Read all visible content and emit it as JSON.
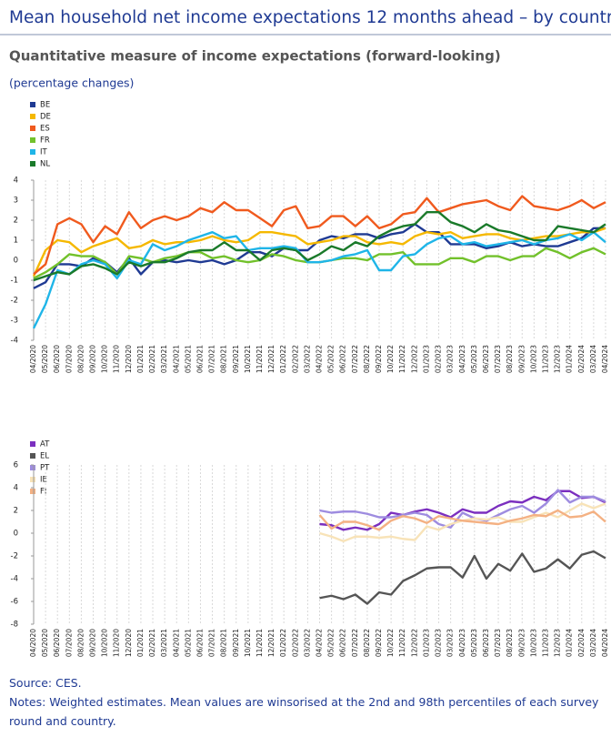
{
  "header": {
    "title": "Mean household net income expectations 12 months ahead – by country",
    "subtitle": "Quantitative measure of income expectations (forward-looking)",
    "unit": "(percentage changes)"
  },
  "chart_data": [
    {
      "type": "line",
      "categories": [
        "04/2020",
        "05/2020",
        "06/2020",
        "07/2020",
        "08/2020",
        "09/2020",
        "10/2020",
        "11/2020",
        "12/2020",
        "01/2021",
        "02/2021",
        "03/2021",
        "04/2021",
        "05/2021",
        "06/2021",
        "07/2021",
        "08/2021",
        "09/2021",
        "10/2021",
        "11/2021",
        "12/2021",
        "01/2022",
        "02/2022",
        "03/2022",
        "04/2022",
        "05/2022",
        "06/2022",
        "07/2022",
        "08/2022",
        "09/2022",
        "10/2022",
        "11/2022",
        "12/2022",
        "01/2023",
        "02/2023",
        "03/2023",
        "04/2023",
        "05/2023",
        "06/2023",
        "07/2023",
        "08/2023",
        "09/2023",
        "10/2023",
        "11/2023",
        "12/2023",
        "01/2024",
        "02/2024",
        "03/2024",
        "04/2024"
      ],
      "series": [
        {
          "name": "BE",
          "color": "#1f3a93",
          "values": [
            -1.4,
            -1.1,
            -0.2,
            -0.2,
            -0.3,
            0.1,
            -0.1,
            -0.6,
            0.1,
            -0.7,
            -0.1,
            0,
            -0.1,
            0,
            -0.1,
            0,
            -0.2,
            0,
            0.4,
            0.4,
            0.2,
            0.6,
            0.5,
            0.5,
            1.0,
            1.2,
            1.1,
            1.3,
            1.3,
            1.1,
            1.3,
            1.4,
            1.8,
            1.4,
            1.4,
            0.8,
            0.8,
            0.8,
            0.6,
            0.7,
            0.9,
            0.7,
            0.8,
            0.7,
            0.7,
            0.9,
            1.1,
            1.6,
            1.6
          ]
        },
        {
          "name": "DE",
          "color": "#f5b800",
          "values": [
            -0.8,
            0.5,
            1.0,
            0.9,
            0.4,
            0.7,
            0.9,
            1.1,
            0.6,
            0.7,
            1.0,
            0.8,
            0.9,
            0.9,
            1.0,
            1.2,
            1.0,
            0.9,
            1.0,
            1.4,
            1.4,
            1.3,
            1.2,
            0.8,
            0.9,
            1.0,
            1.2,
            1.2,
            0.9,
            0.8,
            0.9,
            0.8,
            1.2,
            1.4,
            1.3,
            1.4,
            1.1,
            1.2,
            1.3,
            1.3,
            1.1,
            1.0,
            1.1,
            1.2,
            1.2,
            1.3,
            1.4,
            1.4,
            1.6
          ]
        },
        {
          "name": "ES",
          "color": "#f05a1e",
          "values": [
            -0.7,
            -0.2,
            1.8,
            2.1,
            1.8,
            0.9,
            1.7,
            1.3,
            2.4,
            1.6,
            2.0,
            2.2,
            2.0,
            2.2,
            2.6,
            2.4,
            2.9,
            2.5,
            2.5,
            2.1,
            1.7,
            2.5,
            2.7,
            1.6,
            1.7,
            2.2,
            2.2,
            1.7,
            2.2,
            1.6,
            1.8,
            2.3,
            2.4,
            3.1,
            2.4,
            2.6,
            2.8,
            2.9,
            3.0,
            2.7,
            2.5,
            3.2,
            2.7,
            2.6,
            2.5,
            2.7,
            3.0,
            2.6,
            2.9
          ]
        },
        {
          "name": "FR",
          "color": "#72c12b",
          "values": [
            -0.9,
            -0.6,
            -0.2,
            0.3,
            0.2,
            0.2,
            -0.1,
            -0.7,
            0.2,
            0.1,
            -0.1,
            0.1,
            0.2,
            0.4,
            0.4,
            0.1,
            0.2,
            0,
            -0.1,
            0,
            0.3,
            0.2,
            0,
            -0.1,
            -0.1,
            0,
            0.1,
            0.1,
            0,
            0.3,
            0.3,
            0.4,
            -0.2,
            -0.2,
            -0.2,
            0.1,
            0.1,
            -0.1,
            0.2,
            0.2,
            0,
            0.2,
            0.2,
            0.6,
            0.4,
            0.1,
            0.4,
            0.6,
            0.3
          ]
        },
        {
          "name": "IT",
          "color": "#1fb5e8",
          "values": [
            -3.4,
            -2.2,
            -0.5,
            -0.7,
            -0.2,
            0,
            -0.2,
            -0.9,
            0,
            -0.2,
            0.8,
            0.5,
            0.7,
            1.0,
            1.2,
            1.4,
            1.1,
            1.2,
            0.5,
            0.6,
            0.6,
            0.7,
            0.6,
            -0.1,
            -0.1,
            0,
            0.2,
            0.3,
            0.5,
            -0.5,
            -0.5,
            0.2,
            0.3,
            0.8,
            1.1,
            1.2,
            0.8,
            0.9,
            0.7,
            0.8,
            0.9,
            1.0,
            0.8,
            1.0,
            1.1,
            1.3,
            1.0,
            1.4,
            0.9
          ]
        },
        {
          "name": "NL",
          "color": "#1a7a2a",
          "values": [
            -1.0,
            -0.8,
            -0.6,
            -0.7,
            -0.3,
            -0.2,
            -0.4,
            -0.7,
            -0.1,
            -0.3,
            -0.1,
            -0.1,
            0.1,
            0.4,
            0.5,
            0.5,
            0.9,
            0.5,
            0.5,
            0,
            0.5,
            0.6,
            0.5,
            0,
            0.3,
            0.7,
            0.5,
            0.9,
            0.7,
            1.2,
            1.5,
            1.7,
            1.8,
            2.4,
            2.4,
            1.9,
            1.7,
            1.4,
            1.8,
            1.5,
            1.4,
            1.2,
            1.0,
            1.0,
            1.7,
            1.6,
            1.5,
            1.4,
            1.8
          ]
        }
      ],
      "ylim": [
        -4,
        4
      ],
      "yticks": [
        -4,
        -3,
        -2,
        -1,
        0,
        1,
        2,
        3,
        4
      ],
      "grid": true,
      "legend": "top-left"
    },
    {
      "type": "line",
      "categories": [
        "04/2020",
        "05/2020",
        "06/2020",
        "07/2020",
        "08/2020",
        "09/2020",
        "10/2020",
        "11/2020",
        "12/2020",
        "01/2021",
        "02/2021",
        "03/2021",
        "04/2021",
        "05/2021",
        "06/2021",
        "07/2021",
        "08/2021",
        "09/2021",
        "10/2021",
        "11/2021",
        "12/2021",
        "01/2022",
        "02/2022",
        "03/2022",
        "04/2022",
        "05/2022",
        "06/2022",
        "07/2022",
        "08/2022",
        "09/2022",
        "10/2022",
        "11/2022",
        "12/2022",
        "01/2023",
        "02/2023",
        "03/2023",
        "04/2023",
        "05/2023",
        "06/2023",
        "07/2023",
        "08/2023",
        "09/2023",
        "10/2023",
        "11/2023",
        "12/2023",
        "01/2024",
        "02/2024",
        "03/2024",
        "04/2024"
      ],
      "series": [
        {
          "name": "AT",
          "color": "#7b2fbf",
          "values": [
            null,
            null,
            null,
            null,
            null,
            null,
            null,
            null,
            null,
            null,
            null,
            null,
            null,
            null,
            null,
            null,
            null,
            null,
            null,
            null,
            null,
            null,
            null,
            null,
            0.8,
            0.7,
            0.3,
            0.5,
            0.3,
            0.8,
            1.8,
            1.6,
            1.9,
            2.1,
            1.8,
            1.4,
            2.1,
            1.8,
            1.8,
            2.4,
            2.8,
            2.7,
            3.2,
            2.9,
            3.7,
            3.7,
            3.1,
            3.2,
            2.7
          ]
        },
        {
          "name": "EL",
          "color": "#555555",
          "values": [
            null,
            null,
            null,
            null,
            null,
            null,
            null,
            null,
            null,
            null,
            null,
            null,
            null,
            null,
            null,
            null,
            null,
            null,
            null,
            null,
            null,
            null,
            null,
            null,
            -5.7,
            -5.5,
            -5.8,
            -5.4,
            -6.2,
            -5.2,
            -5.4,
            -4.2,
            -3.7,
            -3.1,
            -3.0,
            -3.0,
            -3.9,
            -2.0,
            -4.0,
            -2.7,
            -3.3,
            -1.8,
            -3.4,
            -3.1,
            -2.3,
            -3.1,
            -1.9,
            -1.6,
            -2.2
          ]
        },
        {
          "name": "PT",
          "color": "#9e8ce0",
          "values": [
            null,
            null,
            null,
            null,
            null,
            null,
            null,
            null,
            null,
            null,
            null,
            null,
            null,
            null,
            null,
            null,
            null,
            null,
            null,
            null,
            null,
            null,
            null,
            null,
            2.0,
            1.8,
            1.9,
            1.9,
            1.7,
            1.4,
            1.4,
            1.6,
            1.8,
            1.6,
            0.8,
            0.5,
            1.8,
            1.3,
            1.1,
            1.6,
            2.1,
            2.4,
            1.8,
            2.6,
            3.8,
            2.7,
            3.2,
            3.2,
            2.8
          ]
        },
        {
          "name": "IE",
          "color": "#f8e3b8",
          "values": [
            null,
            null,
            null,
            null,
            null,
            null,
            null,
            null,
            null,
            null,
            null,
            null,
            null,
            null,
            null,
            null,
            null,
            null,
            null,
            null,
            null,
            null,
            null,
            null,
            0,
            -0.3,
            -0.7,
            -0.3,
            -0.3,
            -0.4,
            -0.3,
            -0.5,
            -0.6,
            0.6,
            0.3,
            0.8,
            1.1,
            1.3,
            1.2,
            1.4,
            1.0,
            1.0,
            1.4,
            1.8,
            1.4,
            2.0,
            2.6,
            2.2,
            2.6
          ]
        },
        {
          "name": "FI",
          "color": "#f4b183",
          "values": [
            null,
            null,
            null,
            null,
            null,
            null,
            null,
            null,
            null,
            null,
            null,
            null,
            null,
            null,
            null,
            null,
            null,
            null,
            null,
            null,
            null,
            null,
            null,
            null,
            1.6,
            0.4,
            1.0,
            1.0,
            0.7,
            0.3,
            1.1,
            1.5,
            1.3,
            0.9,
            1.5,
            1.3,
            1.1,
            1.0,
            0.9,
            0.8,
            1.1,
            1.3,
            1.6,
            1.5,
            2.0,
            1.4,
            1.5,
            1.9,
            1.0
          ]
        }
      ],
      "ylim": [
        -8,
        6
      ],
      "yticks": [
        -8,
        -6,
        -4,
        -2,
        0,
        2,
        4,
        6
      ],
      "grid": true,
      "legend": "top-left"
    }
  ],
  "footer": {
    "source": "Source: CES.",
    "notes": "Notes: Weighted estimates. Mean values are winsorised at the 2nd and 98th percentiles of each survey round and country."
  }
}
